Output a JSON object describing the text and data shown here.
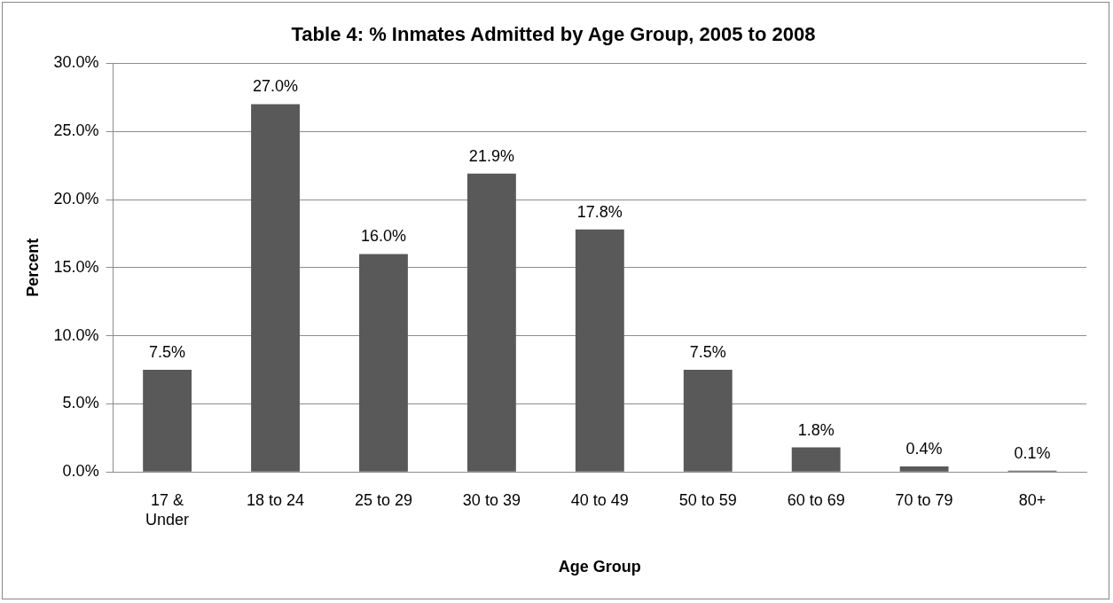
{
  "chart_data": {
    "type": "bar",
    "title": "Table 4: % Inmates Admitted by Age Group, 2005 to 2008",
    "xlabel": "Age Group",
    "ylabel": "Percent",
    "categories": [
      "17 & Under",
      "18 to 24",
      "25 to 29",
      "30 to 39",
      "40 to 49",
      "50 to 59",
      "60 to 69",
      "70 to 79",
      "80+"
    ],
    "values": [
      7.5,
      27.0,
      16.0,
      21.9,
      17.8,
      7.5,
      1.8,
      0.4,
      0.1
    ],
    "value_labels": [
      "7.5%",
      "27.0%",
      "16.0%",
      "21.9%",
      "17.8%",
      "7.5%",
      "1.8%",
      "0.4%",
      "0.1%"
    ],
    "color": "#595959",
    "ylim": [
      0,
      30
    ],
    "yticks": [
      {
        "value": 0,
        "label": "0.0%"
      },
      {
        "value": 5,
        "label": "5.0%"
      },
      {
        "value": 10,
        "label": "10.0%"
      },
      {
        "value": 15,
        "label": "15.0%"
      },
      {
        "value": 20,
        "label": "20.0%"
      },
      {
        "value": 25,
        "label": "25.0%"
      },
      {
        "value": 30,
        "label": "30.0%"
      }
    ],
    "grid": "y",
    "legend": false
  }
}
